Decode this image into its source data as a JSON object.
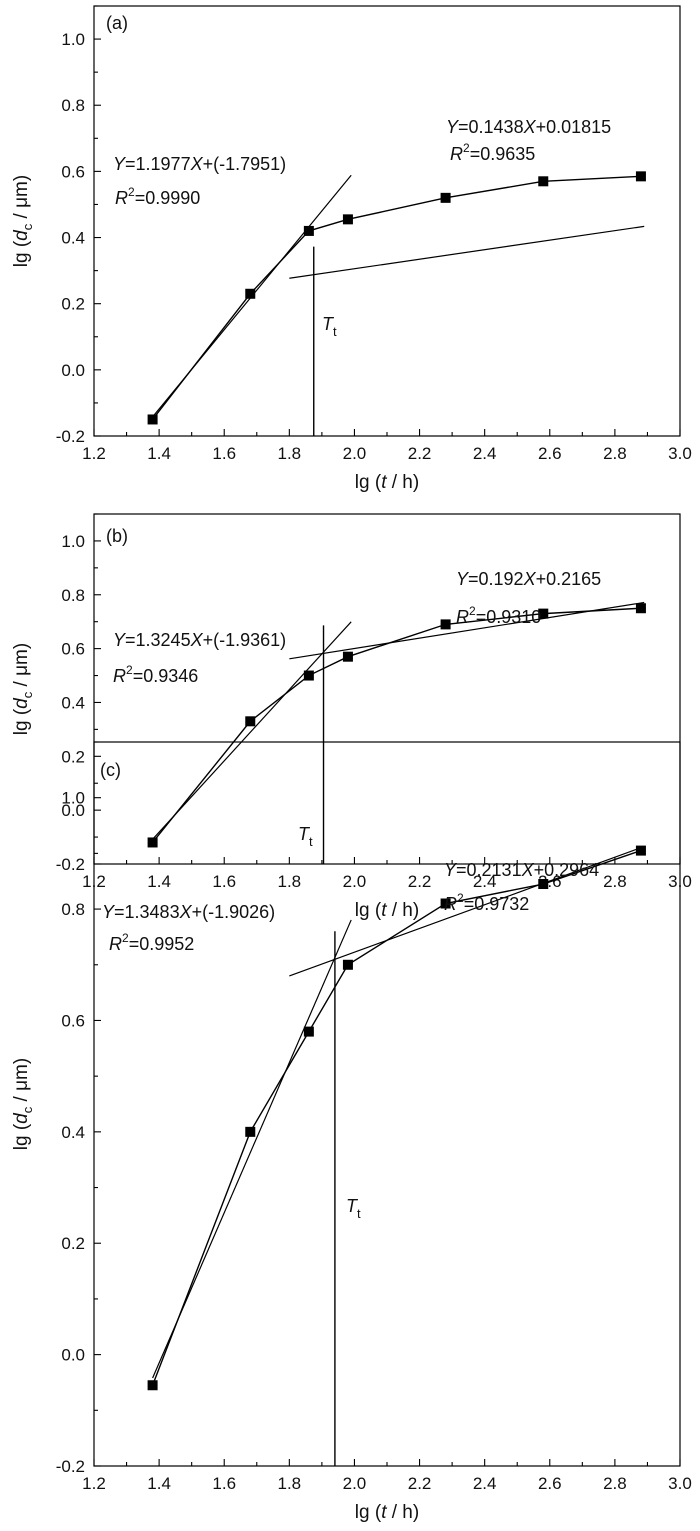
{
  "chart_data": [
    {
      "type": "line",
      "panel": "(a)",
      "xlabel_parts": [
        "lg (",
        "t",
        " / h)"
      ],
      "ylabel_parts": [
        "lg (",
        "d",
        "c",
        " / μm)"
      ],
      "xlim": [
        1.2,
        3.0
      ],
      "ylim": [
        -0.2,
        1.1
      ],
      "xticks": [
        1.2,
        1.4,
        1.6,
        1.8,
        2.0,
        2.2,
        2.4,
        2.6,
        2.8,
        3.0
      ],
      "yticks": [
        -0.2,
        0.0,
        0.2,
        0.4,
        0.6,
        0.8,
        1.0
      ],
      "x": [
        1.38,
        1.68,
        1.86,
        1.98,
        2.28,
        2.58,
        2.88
      ],
      "y": [
        -0.15,
        0.23,
        0.42,
        0.455,
        0.52,
        0.57,
        0.585
      ],
      "tt_label": [
        "T",
        "t"
      ],
      "tt_x": 1.875,
      "fits": [
        {
          "slope": 1.1977,
          "intercept": -1.7951,
          "x_range": [
            1.38,
            1.99
          ],
          "eq_parts": [
            "Y",
            "=1.1977",
            "X",
            "+(-1.7951)"
          ],
          "r2_parts": [
            "R",
            "2",
            "=0.9990"
          ]
        },
        {
          "slope": 0.1438,
          "intercept": 0.01815,
          "x_range": [
            1.8,
            2.89
          ],
          "eq_parts": [
            "Y",
            "=0.1438",
            "X",
            "+0.01815"
          ],
          "r2_parts": [
            "R",
            "2",
            "=0.9635"
          ]
        }
      ]
    },
    {
      "type": "line",
      "panel": "(b)",
      "xlabel_parts": [
        "lg (",
        "t",
        " / h)"
      ],
      "ylabel_parts": [
        "lg (",
        "d",
        "c",
        " / μm)"
      ],
      "xlim": [
        1.2,
        3.0
      ],
      "ylim": [
        -0.2,
        1.1
      ],
      "xticks": [
        1.2,
        1.4,
        1.6,
        1.8,
        2.0,
        2.2,
        2.4,
        2.6,
        2.8,
        3.0
      ],
      "yticks": [
        -0.2,
        0.0,
        0.2,
        0.4,
        0.6,
        0.8,
        1.0
      ],
      "x": [
        1.38,
        1.68,
        1.86,
        1.98,
        2.28,
        2.58,
        2.88
      ],
      "y": [
        -0.12,
        0.33,
        0.5,
        0.57,
        0.69,
        0.73,
        0.75
      ],
      "tt_label": [
        "T",
        "t"
      ],
      "tt_x": 1.905,
      "fits": [
        {
          "slope": 1.3245,
          "intercept": -1.9361,
          "x_range": [
            1.38,
            1.99
          ],
          "eq_parts": [
            "Y",
            "=1.3245",
            "X",
            "+(-1.9361)"
          ],
          "r2_parts": [
            "R",
            "2",
            "=0.9346"
          ]
        },
        {
          "slope": 0.192,
          "intercept": 0.2165,
          "x_range": [
            1.8,
            2.89
          ],
          "eq_parts": [
            "Y",
            "=0.192",
            "X",
            "+0.2165"
          ],
          "r2_parts": [
            "R",
            "2",
            "=0.9310"
          ]
        }
      ]
    },
    {
      "type": "line",
      "panel": "(c)",
      "xlabel_parts": [
        "lg (",
        "t",
        " / h)"
      ],
      "ylabel_parts": [
        "lg (",
        "d",
        "c",
        " / μm)"
      ],
      "xlim": [
        1.2,
        3.0
      ],
      "ylim": [
        -0.2,
        1.1
      ],
      "xticks": [
        1.2,
        1.4,
        1.6,
        1.8,
        2.0,
        2.2,
        2.4,
        2.6,
        2.8,
        3.0
      ],
      "yticks": [
        -0.2,
        0.0,
        0.2,
        0.4,
        0.6,
        0.8,
        1.0
      ],
      "x": [
        1.38,
        1.68,
        1.86,
        1.98,
        2.28,
        2.58,
        2.88
      ],
      "y": [
        -0.055,
        0.4,
        0.58,
        0.7,
        0.81,
        0.845,
        0.905
      ],
      "tt_label": [
        "T",
        "t"
      ],
      "tt_x": 1.94,
      "fits": [
        {
          "slope": 1.3483,
          "intercept": -1.9026,
          "x_range": [
            1.38,
            1.99
          ],
          "eq_parts": [
            "Y",
            "=1.3483",
            "X",
            "+(-1.9026)"
          ],
          "r2_parts": [
            "R",
            "2",
            "=0.9952"
          ]
        },
        {
          "slope": 0.2131,
          "intercept": 0.2964,
          "x_range": [
            1.8,
            2.89
          ],
          "eq_parts": [
            "Y",
            "=0.2131",
            "X",
            "+0.2964"
          ],
          "r2_parts": [
            "R",
            "2",
            "=0.9732"
          ]
        }
      ]
    }
  ]
}
